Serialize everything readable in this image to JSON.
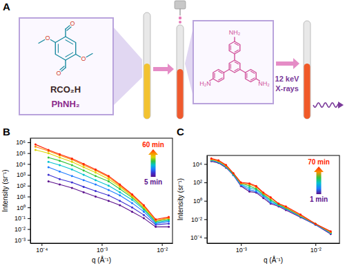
{
  "chart_data": [
    {
      "type": "line",
      "title": "B",
      "x_label": "q (Å⁻¹)",
      "y_label": "Intensity (sr⁻¹)",
      "log": true,
      "grid": false,
      "marker": "circle",
      "line_style": "solid",
      "xlim": [
        6.5e-05,
        0.015
      ],
      "ylim": [
        0.0005,
        2400000.0
      ],
      "xticks": [
        {
          "value": 0.0001,
          "label": "10⁻⁴"
        },
        {
          "value": 0.001,
          "label": "10⁻³"
        },
        {
          "value": 0.01,
          "label": "10⁻²"
        }
      ],
      "yticks": [
        {
          "value": 0.001,
          "label": "10⁻³"
        },
        {
          "value": 0.01,
          "label": "10⁻²"
        },
        {
          "value": 0.1,
          "label": "10⁻¹"
        },
        {
          "value": 1,
          "label": "10⁰"
        },
        {
          "value": 10,
          "label": "10¹"
        },
        {
          "value": 100,
          "label": "10²"
        },
        {
          "value": 1000,
          "label": "10³"
        },
        {
          "value": 10000,
          "label": "10⁴"
        },
        {
          "value": 100000,
          "label": "10⁵"
        },
        {
          "value": 1000000,
          "label": "10⁶"
        }
      ],
      "x": [
        7.9e-05,
        0.00013,
        0.0002,
        0.00032,
        0.0005,
        0.00079,
        0.0013,
        0.002,
        0.0032,
        0.005,
        0.0079,
        0.013
      ],
      "series": [
        {
          "color": "#5a0f8c",
          "values": [
            null,
            250,
            130,
            63,
            25,
            10,
            4,
            1.6,
            0.4,
            0.1,
            0.016,
            0.016
          ]
        },
        {
          "color": "#3c2fd0",
          "values": [
            null,
            1000,
            400,
            200,
            79,
            32,
            13,
            4,
            1,
            0.2,
            0.025,
            0.032
          ]
        },
        {
          "color": "#1e7bff",
          "values": [
            null,
            5000,
            2000,
            790,
            320,
            130,
            40,
            13,
            2.5,
            0.4,
            0.032,
            0.05
          ]
        },
        {
          "color": "#00c2cf",
          "values": [
            null,
            16000,
            7900,
            3200,
            1000,
            320,
            100,
            25,
            5,
            0.63,
            0.04,
            0.063
          ]
        },
        {
          "color": "#33c43a",
          "values": [
            null,
            40000,
            20000,
            7900,
            2500,
            790,
            250,
            50,
            7.9,
            0.79,
            0.05,
            0.079
          ]
        },
        {
          "color": "#d9d500",
          "values": [
            200000,
            100000,
            40000,
            16000,
            5000,
            1600,
            400,
            79,
            10,
            1,
            0.063,
            0.1
          ]
        },
        {
          "color": "#ff8c00",
          "values": [
            400000,
            160000,
            63000,
            25000,
            7900,
            2500,
            630,
            100,
            13,
            1.3,
            0.063,
            0.1
          ]
        },
        {
          "color": "#ff1e00",
          "values": [
            630000,
            200000,
            79000,
            32000,
            10000,
            3200,
            790,
            130,
            16,
            1.6,
            0.079,
            0.13
          ]
        }
      ],
      "colorbar_range": [
        5,
        60
      ],
      "colorbar_ticks": [
        {
          "value": 5,
          "label": "5 min"
        },
        {
          "value": 60,
          "label": "60 min"
        }
      ]
    },
    {
      "type": "line",
      "title": "C",
      "x_label": "q (Å⁻¹)",
      "y_label": "Intensity (sr⁻¹)",
      "log": true,
      "grid": false,
      "marker": "circle",
      "line_style": "solid",
      "xlim": [
        0.00035,
        0.021
      ],
      "ylim": [
        2.5e-05,
        85000.0
      ],
      "xticks": [
        {
          "value": 0.001,
          "label": "10⁻³"
        },
        {
          "value": 0.01,
          "label": "10⁻²"
        }
      ],
      "yticks": [
        {
          "value": 0.0001,
          "label": "10⁻⁴"
        },
        {
          "value": 0.01,
          "label": "10⁻²"
        },
        {
          "value": 1,
          "label": "10⁰"
        },
        {
          "value": 100,
          "label": "10²"
        },
        {
          "value": 10000,
          "label": "10⁴"
        }
      ],
      "x": [
        0.0004,
        0.0005,
        0.00063,
        0.00079,
        0.001,
        0.0013,
        0.0016,
        0.002,
        0.0025,
        0.0032,
        0.004,
        0.0063,
        0.01,
        0.016
      ],
      "series": [
        {
          "color": "#5a0f8c",
          "values": [
            20000,
            13000,
            4000,
            630,
            40,
            10,
            7.9,
            2.0,
            0.5,
            0.25,
            0.1,
            0.016,
            0.0025,
            0.00025
          ]
        },
        {
          "color": "#1e7bff",
          "values": [
            25000,
            16000,
            5000,
            630,
            50,
            16,
            10,
            3.2,
            0.63,
            0.32,
            0.13,
            0.02,
            0.0025,
            0.00032
          ]
        },
        {
          "color": "#00c2cf",
          "values": [
            25000,
            16000,
            5000,
            790,
            63,
            25,
            16,
            4.0,
            1,
            0.32,
            0.16,
            0.02,
            0.0032,
            0.00032
          ]
        },
        {
          "color": "#33c43a",
          "values": [
            32000,
            20000,
            6300,
            790,
            79,
            40,
            20,
            5.0,
            1.3,
            0.4,
            0.16,
            0.025,
            0.0032,
            0.0004
          ]
        },
        {
          "color": "#ff8c00",
          "values": [
            32000,
            20000,
            6300,
            1000,
            79,
            63,
            32,
            6.3,
            2.0,
            0.5,
            0.2,
            0.025,
            0.0032,
            0.0004
          ]
        },
        {
          "color": "#ff1e00",
          "values": [
            40000,
            25000,
            7900,
            1000,
            100,
            79,
            40,
            7.9,
            2.5,
            0.5,
            0.25,
            0.032,
            0.0032,
            0.0005
          ]
        }
      ],
      "colorbar_range": [
        1,
        70
      ],
      "colorbar_ticks": [
        {
          "value": 1,
          "label": "1 min"
        },
        {
          "value": 70,
          "label": "70 min"
        }
      ]
    }
  ],
  "diagram": {
    "label": "A",
    "reagents": [
      "RCO₂H",
      "PhNH₂"
    ],
    "dialdehyde_atoms": [
      "O",
      "O",
      "O",
      "O"
    ],
    "triamine_atoms": [
      "NH₂",
      "NH₂",
      "H₂N"
    ],
    "beam": [
      "12 keV",
      "X-rays"
    ]
  }
}
